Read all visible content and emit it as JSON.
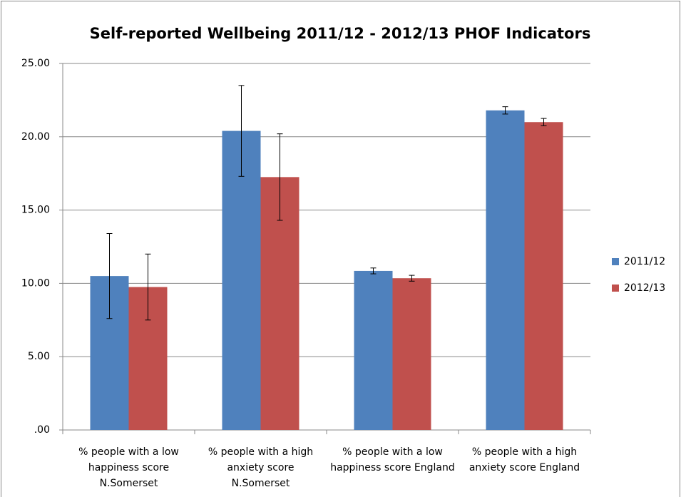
{
  "chart_data": {
    "type": "bar",
    "title": "Self-reported Wellbeing  2011/12 - 2012/13 PHOF Indicators",
    "categories": [
      "% people with a low happiness score N.Somerset",
      "% people with a high anxiety score N.Somerset",
      "% people with a low happiness score England",
      "% people with a high anxiety score England"
    ],
    "series": [
      {
        "name": "2011/12",
        "color": "#4f81bd",
        "values": [
          10.5,
          20.4,
          10.85,
          21.8
        ],
        "errors": [
          2.9,
          3.1,
          0.2,
          0.25
        ]
      },
      {
        "name": "2012/13",
        "color": "#c0504d",
        "values": [
          9.75,
          17.25,
          10.35,
          21.0
        ],
        "errors": [
          2.25,
          2.95,
          0.2,
          0.25
        ]
      }
    ],
    "ylim": [
      0,
      25
    ],
    "yticks": [
      {
        "value": 0,
        "label": ".00"
      },
      {
        "value": 5,
        "label": "5.00"
      },
      {
        "value": 10,
        "label": "10.00"
      },
      {
        "value": 15,
        "label": "15.00"
      },
      {
        "value": 20,
        "label": "20.00"
      },
      {
        "value": 25,
        "label": "25.00"
      }
    ],
    "grid": true,
    "legend": "right"
  }
}
